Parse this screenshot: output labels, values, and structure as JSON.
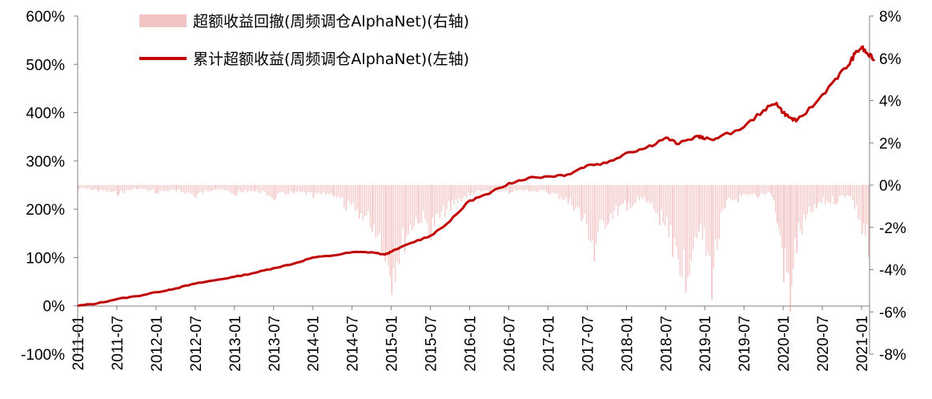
{
  "chart_data": {
    "type": "line",
    "x_tick_labels": [
      "2011-01",
      "2011-07",
      "2012-01",
      "2012-07",
      "2013-01",
      "2013-07",
      "2014-01",
      "2014-07",
      "2015-01",
      "2015-07",
      "2016-01",
      "2016-07",
      "2017-01",
      "2017-07",
      "2018-01",
      "2018-07",
      "2019-01",
      "2019-07",
      "2020-01",
      "2020-07",
      "2021-01"
    ],
    "y_left_ticks": [
      "600%",
      "500%",
      "400%",
      "300%",
      "200%",
      "100%",
      "0%",
      "-100%"
    ],
    "y_left_range": [
      -100,
      600
    ],
    "y_right_ticks": [
      "8%",
      "6%",
      "4%",
      "2%",
      "0%",
      "-2%",
      "-4%",
      "-6%",
      "-8%"
    ],
    "y_right_range": [
      -8,
      8
    ],
    "legend_placement": "top-left",
    "grid": false,
    "series": [
      {
        "name": "超额收益回撤(周频调仓AlphaNet)(右轴)",
        "type": "bar",
        "axis": "right",
        "color": "#f2c4c4",
        "x": [
          "2011-01",
          "2011-04",
          "2011-07",
          "2011-10",
          "2012-01",
          "2012-04",
          "2012-07",
          "2012-10",
          "2013-01",
          "2013-04",
          "2013-07",
          "2013-10",
          "2014-01",
          "2014-04",
          "2014-06",
          "2014-08",
          "2014-10",
          "2014-12",
          "2015-01",
          "2015-03",
          "2015-05",
          "2015-07",
          "2015-10",
          "2016-01",
          "2016-04",
          "2016-07",
          "2016-10",
          "2017-01",
          "2017-04",
          "2017-06",
          "2017-08",
          "2017-10",
          "2018-01",
          "2018-04",
          "2018-06",
          "2018-08",
          "2018-10",
          "2018-12",
          "2019-02",
          "2019-04",
          "2019-06",
          "2019-09",
          "2019-11",
          "2019-12",
          "2020-01",
          "2020-02",
          "2020-03",
          "2020-06",
          "2020-09",
          "2020-11",
          "2021-01",
          "2021-02"
        ],
        "values": [
          -0.2,
          -0.3,
          -0.5,
          -0.2,
          -0.4,
          -0.3,
          -0.6,
          -0.2,
          -0.5,
          -0.3,
          -0.7,
          -0.4,
          -0.6,
          -0.5,
          -1.2,
          -1.6,
          -2.2,
          -3.6,
          -5.2,
          -3.2,
          -1.8,
          -2.6,
          -1.2,
          -0.5,
          -0.3,
          -0.4,
          -0.3,
          -0.4,
          -0.9,
          -1.7,
          -3.6,
          -1.9,
          -1.2,
          -0.8,
          -1.9,
          -3.4,
          -5.1,
          -2.2,
          -5.4,
          -1.1,
          -0.8,
          -0.6,
          -0.4,
          -1.8,
          -4.6,
          -6.0,
          -3.2,
          -1.1,
          -0.9,
          -0.5,
          -2.3,
          -3.4
        ]
      },
      {
        "name": "累计超额收益(周频调仓AlphaNet)(左轴)",
        "type": "line",
        "axis": "left",
        "color": "#c00000",
        "x": [
          "2011-01",
          "2011-04",
          "2011-07",
          "2011-10",
          "2012-01",
          "2012-04",
          "2012-07",
          "2012-10",
          "2013-01",
          "2013-04",
          "2013-07",
          "2013-10",
          "2014-01",
          "2014-04",
          "2014-07",
          "2014-10",
          "2014-12",
          "2015-01",
          "2015-04",
          "2015-07",
          "2015-10",
          "2016-01",
          "2016-04",
          "2016-07",
          "2016-10",
          "2017-01",
          "2017-04",
          "2017-07",
          "2017-10",
          "2018-01",
          "2018-04",
          "2018-07",
          "2018-09",
          "2018-12",
          "2019-01",
          "2019-03",
          "2019-07",
          "2019-10",
          "2019-12",
          "2020-01",
          "2020-02",
          "2020-03",
          "2020-06",
          "2020-09",
          "2020-11",
          "2020-12",
          "2021-01",
          "2021-02",
          "2021-03"
        ],
        "values": [
          0,
          5,
          14,
          20,
          28,
          36,
          46,
          53,
          60,
          68,
          78,
          87,
          100,
          104,
          111,
          111,
          106,
          112,
          130,
          145,
          175,
          218,
          232,
          254,
          265,
          268,
          272,
          291,
          296,
          317,
          327,
          348,
          335,
          352,
          345,
          347,
          370,
          405,
          420,
          400,
          390,
          382,
          420,
          470,
          498,
          522,
          535,
          520,
          510
        ]
      }
    ]
  }
}
